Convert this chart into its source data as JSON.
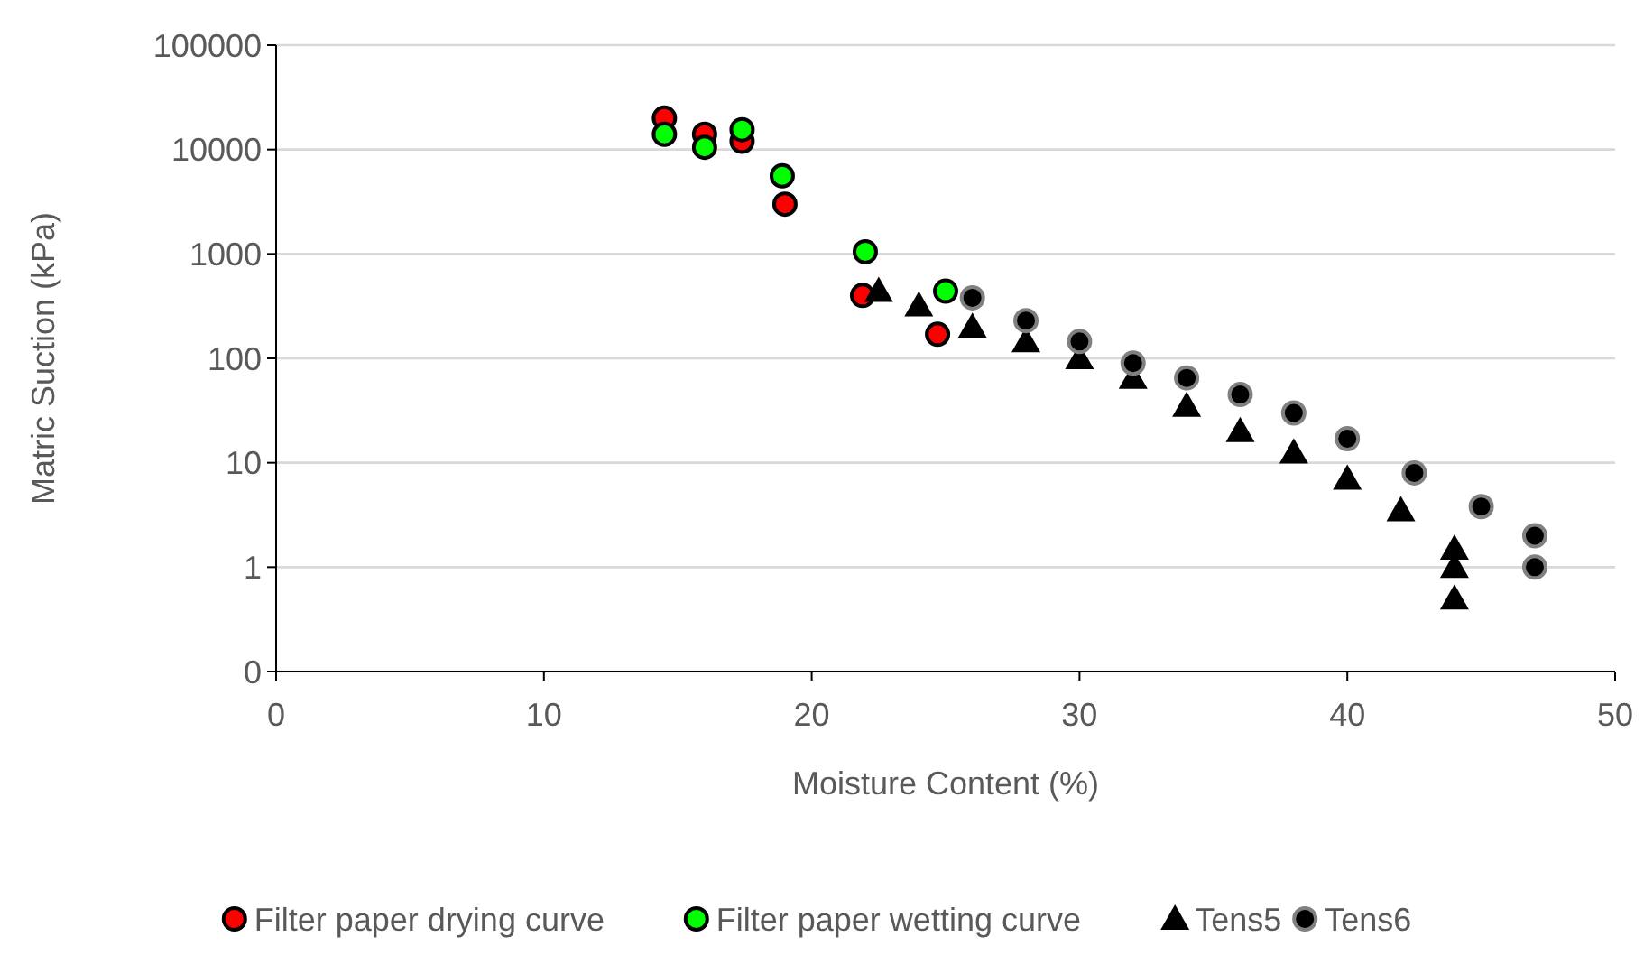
{
  "chart_data": {
    "type": "scatter",
    "xlabel": "Moisture Content (%)",
    "ylabel": "Matric Suction (kPa)",
    "log": "y",
    "grid": "y",
    "legend": "bottom",
    "xlim": [
      0,
      50
    ],
    "xticks": [
      0,
      10,
      20,
      30,
      40,
      50
    ],
    "ylim": [
      0.1,
      100000
    ],
    "yticks": [
      {
        "value": 0.1,
        "label": "0"
      },
      1,
      10,
      100,
      1000,
      10000,
      100000
    ],
    "series": [
      {
        "name": "Filter paper drying curve",
        "color": "#ff0000",
        "marker": "circle",
        "x": [
          14.5,
          16,
          17.4,
          19,
          21.9,
          24.7
        ],
        "values": [
          20000,
          14000,
          12000,
          3000,
          400,
          170
        ]
      },
      {
        "name": "Filter paper wetting curve",
        "color": "#00ff00",
        "marker": "circle",
        "x": [
          14.5,
          16,
          17.4,
          18.9,
          22,
          25
        ],
        "values": [
          14000,
          10500,
          15500,
          5600,
          1050,
          440
        ]
      },
      {
        "name": "Tens5",
        "color": "#000000",
        "marker": "triangle",
        "x": [
          22.5,
          24,
          26,
          28,
          30,
          32,
          34,
          36,
          38,
          40,
          42,
          44,
          44,
          44
        ],
        "values": [
          440,
          320,
          200,
          145,
          100,
          65,
          35,
          20,
          12.5,
          7,
          3.5,
          1.5,
          1,
          0.5
        ]
      },
      {
        "name": "Tens6",
        "color": "#000000",
        "marker": "circle",
        "x": [
          26,
          28,
          30,
          32,
          34,
          36,
          38,
          40,
          42.5,
          45,
          47,
          47
        ],
        "values": [
          380,
          230,
          145,
          90,
          65,
          45,
          30,
          17,
          8,
          3.8,
          2,
          1
        ]
      }
    ]
  }
}
